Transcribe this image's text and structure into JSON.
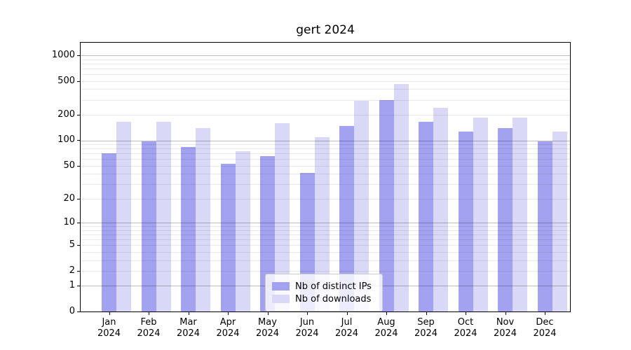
{
  "title": "gert 2024",
  "colors": {
    "ips": "#a2a2f0",
    "downloads": "#d9d9f7",
    "grid_major": "rgba(0,0,0,0.26)",
    "grid_minor": "rgba(0,0,0,0.085)",
    "spine": "#000000",
    "legend_border": "#cccccc"
  },
  "legend": {
    "items": [
      {
        "label": "Nb of distinct IPs",
        "color_key": "ips"
      },
      {
        "label": "Nb of downloads",
        "color_key": "downloads"
      }
    ]
  },
  "y_axis": {
    "tick_labels": [
      "0",
      "1",
      "2",
      "5",
      "10",
      "20",
      "50",
      "100",
      "200",
      "500",
      "1000"
    ]
  },
  "x_axis": {
    "months": [
      "Jan",
      "Feb",
      "Mar",
      "Apr",
      "May",
      "Jun",
      "Jul",
      "Aug",
      "Sep",
      "Oct",
      "Nov",
      "Dec"
    ],
    "year_label": "2024"
  },
  "chart_data": {
    "type": "bar",
    "title": "gert 2024",
    "categories": [
      "Jan 2024",
      "Feb 2024",
      "Mar 2024",
      "Apr 2024",
      "May 2024",
      "Jun 2024",
      "Jul 2024",
      "Aug 2024",
      "Sep 2024",
      "Oct 2024",
      "Nov 2024",
      "Dec 2024"
    ],
    "series": [
      {
        "name": "Nb of distinct IPs",
        "values": [
          70,
          97,
          83,
          53,
          65,
          41,
          148,
          300,
          165,
          128,
          140,
          98
        ]
      },
      {
        "name": "Nb of downloads",
        "values": [
          165,
          165,
          140,
          74,
          160,
          110,
          295,
          460,
          242,
          186,
          186,
          127
        ]
      }
    ],
    "yscale": "log1p",
    "y_ticks": [
      0,
      1,
      2,
      5,
      10,
      20,
      50,
      100,
      200,
      500,
      1000
    ],
    "grid_minor_values": [
      2,
      3,
      4,
      5,
      6,
      7,
      8,
      9,
      20,
      30,
      40,
      50,
      60,
      70,
      80,
      90,
      200,
      300,
      400,
      500,
      600,
      700,
      800,
      900
    ],
    "grid_major_values": [
      1,
      10,
      100,
      1000
    ],
    "ylim": [
      0,
      1400
    ],
    "grid": true,
    "legend_position": "lower center"
  }
}
